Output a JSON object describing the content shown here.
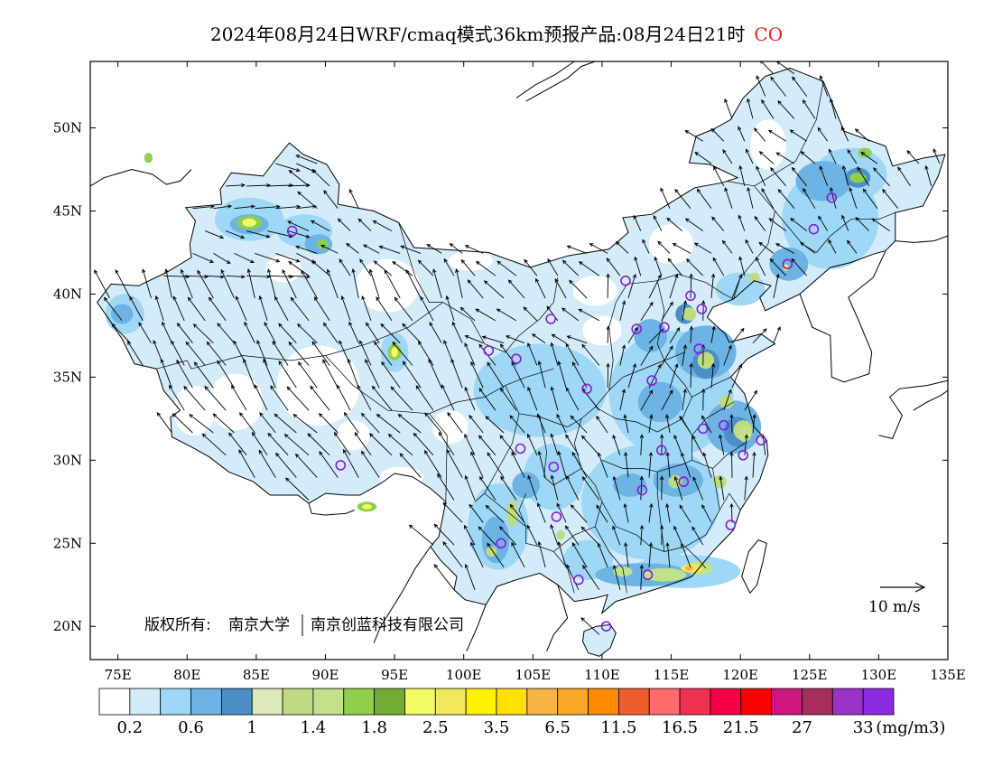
{
  "title": {
    "main": "2024年08月24日WRF/cmaq模式36km预报产品:08月24日21时",
    "species": "CO"
  },
  "axes": {
    "lon_ticks": [
      "75E",
      "80E",
      "85E",
      "90E",
      "95E",
      "100E",
      "105E",
      "110E",
      "115E",
      "120E",
      "125E",
      "130E",
      "135E"
    ],
    "lat_ticks": [
      "20N",
      "25N",
      "30N",
      "35N",
      "40N",
      "45N",
      "50N"
    ]
  },
  "wind_reference": {
    "label": "10 m/s"
  },
  "copyright": {
    "label": "版权所有:",
    "org1": "南京大学",
    "org2": "南京创蓝科技有限公司"
  },
  "colorbar": {
    "colors": [
      "#ffffff",
      "#d4ecfa",
      "#9ed8f6",
      "#6db3e3",
      "#4b8fc6",
      "#dceab9",
      "#bfdb82",
      "#c2e18a",
      "#90cf4e",
      "#72ac36",
      "#f2fa64",
      "#f2e85c",
      "#fff200",
      "#ffe000",
      "#f7b445",
      "#f8a826",
      "#ff8c00",
      "#f05d2c",
      "#ff6a6a",
      "#f03050",
      "#f50046",
      "#ff0000",
      "#cd1680",
      "#a82d5c",
      "#9a32c8",
      "#8c2be2"
    ],
    "labels": [
      "0.2",
      "0.6",
      "1",
      "1.4",
      "1.8",
      "2.5",
      "3.5",
      "6.5",
      "11.5",
      "16.5",
      "21.5",
      "27",
      "33"
    ],
    "unit": "(mg/m3)"
  },
  "chart_data": {
    "type": "map",
    "map_extent": {
      "lon": [
        73,
        135
      ],
      "lat": [
        18,
        54
      ]
    },
    "variable": "CO",
    "unit": "mg/m3",
    "legend_levels": [
      0.2,
      0.6,
      1,
      1.4,
      1.8,
      2.5,
      3.5,
      6.5,
      11.5,
      16.5,
      21.5,
      27,
      33
    ],
    "hotspots": [
      {
        "lon": 84.5,
        "lat": 44.3,
        "value": 2.5
      },
      {
        "lon": 95.0,
        "lat": 36.5,
        "value": 2.5
      },
      {
        "lon": 93.0,
        "lat": 27.2,
        "value": 2.5
      },
      {
        "lon": 114.5,
        "lat": 23.1,
        "value": 3.5
      },
      {
        "lon": 116.5,
        "lat": 23.5,
        "value": 6.5
      },
      {
        "lon": 111.5,
        "lat": 23.3,
        "value": 2.5
      },
      {
        "lon": 120.3,
        "lat": 31.6,
        "value": 2.5
      },
      {
        "lon": 123.3,
        "lat": 41.6,
        "value": 2.5
      },
      {
        "lon": 128.5,
        "lat": 47.0,
        "value": 2.5
      },
      {
        "lon": 105.0,
        "lat": 27.0,
        "value": 2.5
      }
    ],
    "station_markers": [
      {
        "lon": 87.6,
        "lat": 43.8
      },
      {
        "lon": 91.1,
        "lat": 29.7
      },
      {
        "lon": 101.8,
        "lat": 36.6
      },
      {
        "lon": 103.8,
        "lat": 36.1
      },
      {
        "lon": 106.3,
        "lat": 38.5
      },
      {
        "lon": 108.9,
        "lat": 34.3
      },
      {
        "lon": 111.7,
        "lat": 40.8
      },
      {
        "lon": 112.5,
        "lat": 37.9
      },
      {
        "lon": 114.5,
        "lat": 38.0
      },
      {
        "lon": 116.4,
        "lat": 39.9
      },
      {
        "lon": 117.2,
        "lat": 39.1
      },
      {
        "lon": 117.0,
        "lat": 36.7
      },
      {
        "lon": 113.6,
        "lat": 34.8
      },
      {
        "lon": 117.3,
        "lat": 31.9
      },
      {
        "lon": 118.8,
        "lat": 32.1
      },
      {
        "lon": 120.2,
        "lat": 30.3
      },
      {
        "lon": 121.5,
        "lat": 31.2
      },
      {
        "lon": 114.3,
        "lat": 30.6
      },
      {
        "lon": 112.9,
        "lat": 28.2
      },
      {
        "lon": 115.9,
        "lat": 28.7
      },
      {
        "lon": 119.3,
        "lat": 26.1
      },
      {
        "lon": 113.3,
        "lat": 23.1
      },
      {
        "lon": 108.3,
        "lat": 22.8
      },
      {
        "lon": 110.3,
        "lat": 20.0
      },
      {
        "lon": 102.7,
        "lat": 25.0
      },
      {
        "lon": 106.7,
        "lat": 26.6
      },
      {
        "lon": 106.5,
        "lat": 29.6
      },
      {
        "lon": 104.1,
        "lat": 30.7
      },
      {
        "lon": 123.4,
        "lat": 41.8
      },
      {
        "lon": 125.3,
        "lat": 43.9
      },
      {
        "lon": 126.6,
        "lat": 45.8
      }
    ]
  }
}
